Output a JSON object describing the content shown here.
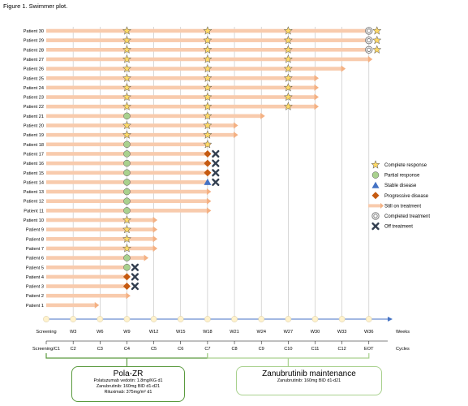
{
  "figure_title": "Figure 1. Swimmer plot.",
  "colors": {
    "bar": "#f8cbad",
    "arrow": "#f4b183",
    "axis": "#4472c4",
    "grid": "#bfbfbf",
    "cr": "#ffd966",
    "pr": "#a9d18e",
    "sd": "#4472c4",
    "pd": "#c55a11",
    "off": "#333f50",
    "completed": "#7f7f7f",
    "tick": "#fff2cc",
    "pola_border": "#5a9a3e",
    "zanu_border": "#a9d18e"
  },
  "chart_data": {
    "type": "swimmer",
    "x_axis_label": "Weeks",
    "cycles_label": "Cycles",
    "timepoints": [
      {
        "week": 0,
        "label": "Screening",
        "cycle": "Screening/C1"
      },
      {
        "week": 3,
        "label": "W3",
        "cycle": "C2"
      },
      {
        "week": 6,
        "label": "W6",
        "cycle": "C3"
      },
      {
        "week": 9,
        "label": "W9",
        "cycle": "C4"
      },
      {
        "week": 12,
        "label": "W12",
        "cycle": "C5"
      },
      {
        "week": 15,
        "label": "W15",
        "cycle": "C6"
      },
      {
        "week": 18,
        "label": "W18",
        "cycle": "C7"
      },
      {
        "week": 21,
        "label": "W21",
        "cycle": "C8"
      },
      {
        "week": 24,
        "label": "W24",
        "cycle": "C9"
      },
      {
        "week": 27,
        "label": "W27",
        "cycle": "C10"
      },
      {
        "week": 30,
        "label": "W30",
        "cycle": "C11"
      },
      {
        "week": 33,
        "label": "W33",
        "cycle": "C12"
      },
      {
        "week": 36,
        "label": "W36",
        "cycle": "EOT"
      }
    ],
    "legend": [
      {
        "key": "cr",
        "label": "Complete response"
      },
      {
        "key": "pr",
        "label": "Partial response"
      },
      {
        "key": "sd",
        "label": "Stable disease"
      },
      {
        "key": "pd",
        "label": "Progressive disease"
      },
      {
        "key": "arrow",
        "label": "Still on treatment"
      },
      {
        "key": "completed",
        "label": "Completed treatment"
      },
      {
        "key": "off",
        "label": "Off treatment"
      }
    ],
    "patients": [
      {
        "label": "Patient 30",
        "end": 36,
        "arrow": false,
        "markers": [
          {
            "w": 9,
            "t": "cr"
          },
          {
            "w": 18,
            "t": "cr"
          },
          {
            "w": 27,
            "t": "cr"
          },
          {
            "w": 36,
            "t": "completed"
          },
          {
            "w": 36.9,
            "t": "cr"
          }
        ]
      },
      {
        "label": "Patient 29",
        "end": 36,
        "arrow": false,
        "markers": [
          {
            "w": 9,
            "t": "cr"
          },
          {
            "w": 18,
            "t": "cr"
          },
          {
            "w": 27,
            "t": "cr"
          },
          {
            "w": 36,
            "t": "completed"
          },
          {
            "w": 36.9,
            "t": "cr"
          }
        ]
      },
      {
        "label": "Patient 28",
        "end": 36,
        "arrow": false,
        "markers": [
          {
            "w": 9,
            "t": "cr"
          },
          {
            "w": 18,
            "t": "cr"
          },
          {
            "w": 27,
            "t": "cr"
          },
          {
            "w": 36,
            "t": "completed"
          },
          {
            "w": 36.9,
            "t": "cr"
          }
        ]
      },
      {
        "label": "Patient 27",
        "end": 36,
        "arrow": true,
        "markers": [
          {
            "w": 9,
            "t": "cr"
          },
          {
            "w": 18,
            "t": "cr"
          },
          {
            "w": 27,
            "t": "cr"
          }
        ]
      },
      {
        "label": "Patient 26",
        "end": 33,
        "arrow": true,
        "markers": [
          {
            "w": 9,
            "t": "cr"
          },
          {
            "w": 18,
            "t": "cr"
          },
          {
            "w": 27,
            "t": "cr"
          }
        ]
      },
      {
        "label": "Patient 25",
        "end": 30,
        "arrow": true,
        "markers": [
          {
            "w": 9,
            "t": "cr"
          },
          {
            "w": 18,
            "t": "cr"
          },
          {
            "w": 27,
            "t": "cr"
          }
        ]
      },
      {
        "label": "Patient 24",
        "end": 30,
        "arrow": true,
        "markers": [
          {
            "w": 9,
            "t": "cr"
          },
          {
            "w": 18,
            "t": "cr"
          },
          {
            "w": 27,
            "t": "cr"
          }
        ]
      },
      {
        "label": "Patient 23",
        "end": 30,
        "arrow": true,
        "markers": [
          {
            "w": 9,
            "t": "cr"
          },
          {
            "w": 18,
            "t": "cr"
          },
          {
            "w": 27,
            "t": "cr"
          }
        ]
      },
      {
        "label": "Patient 22",
        "end": 30,
        "arrow": true,
        "markers": [
          {
            "w": 9,
            "t": "cr"
          },
          {
            "w": 18,
            "t": "cr"
          },
          {
            "w": 27,
            "t": "cr"
          }
        ]
      },
      {
        "label": "Patient 21",
        "end": 24,
        "arrow": true,
        "markers": [
          {
            "w": 9,
            "t": "pr"
          },
          {
            "w": 18,
            "t": "cr"
          }
        ]
      },
      {
        "label": "Patient 20",
        "end": 21,
        "arrow": true,
        "markers": [
          {
            "w": 9,
            "t": "cr"
          },
          {
            "w": 18,
            "t": "cr"
          }
        ]
      },
      {
        "label": "Patient 19",
        "end": 21,
        "arrow": true,
        "markers": [
          {
            "w": 9,
            "t": "cr"
          },
          {
            "w": 18,
            "t": "cr"
          }
        ]
      },
      {
        "label": "Patient 18",
        "end": 18,
        "arrow": true,
        "markers": [
          {
            "w": 9,
            "t": "pr"
          },
          {
            "w": 18,
            "t": "cr"
          }
        ]
      },
      {
        "label": "Patient 17",
        "end": 18,
        "arrow": false,
        "markers": [
          {
            "w": 9,
            "t": "pr"
          },
          {
            "w": 18,
            "t": "pd"
          },
          {
            "w": 18.9,
            "t": "off"
          }
        ]
      },
      {
        "label": "Patient 16",
        "end": 18,
        "arrow": false,
        "markers": [
          {
            "w": 9,
            "t": "pr"
          },
          {
            "w": 18,
            "t": "pd"
          },
          {
            "w": 18.9,
            "t": "off"
          }
        ]
      },
      {
        "label": "Patient 15",
        "end": 18,
        "arrow": false,
        "markers": [
          {
            "w": 9,
            "t": "pr"
          },
          {
            "w": 18,
            "t": "pd"
          },
          {
            "w": 18.9,
            "t": "off"
          }
        ]
      },
      {
        "label": "Patient 14",
        "end": 18,
        "arrow": false,
        "markers": [
          {
            "w": 9,
            "t": "pr"
          },
          {
            "w": 18,
            "t": "sd"
          },
          {
            "w": 18.9,
            "t": "off"
          }
        ]
      },
      {
        "label": "Patient 13",
        "end": 18,
        "arrow": true,
        "markers": [
          {
            "w": 9,
            "t": "pr"
          }
        ]
      },
      {
        "label": "Patient 12",
        "end": 18,
        "arrow": true,
        "markers": [
          {
            "w": 9,
            "t": "pr"
          }
        ]
      },
      {
        "label": "Patient 11",
        "end": 18,
        "arrow": true,
        "markers": [
          {
            "w": 9,
            "t": "pr"
          }
        ]
      },
      {
        "label": "Patient 10",
        "end": 12,
        "arrow": true,
        "markers": [
          {
            "w": 9,
            "t": "cr"
          }
        ]
      },
      {
        "label": "Patient 9",
        "end": 12,
        "arrow": true,
        "markers": [
          {
            "w": 9,
            "t": "cr"
          }
        ]
      },
      {
        "label": "Patient 8",
        "end": 12,
        "arrow": true,
        "markers": [
          {
            "w": 9,
            "t": "cr"
          }
        ]
      },
      {
        "label": "Patient 7",
        "end": 12,
        "arrow": true,
        "markers": [
          {
            "w": 9,
            "t": "cr"
          }
        ]
      },
      {
        "label": "Patient 6",
        "end": 11,
        "arrow": true,
        "markers": [
          {
            "w": 9,
            "t": "pr"
          }
        ]
      },
      {
        "label": "Patient 5",
        "end": 9,
        "arrow": false,
        "markers": [
          {
            "w": 9,
            "t": "pr"
          },
          {
            "w": 9.9,
            "t": "off"
          }
        ]
      },
      {
        "label": "Patient 4",
        "end": 9,
        "arrow": false,
        "markers": [
          {
            "w": 9,
            "t": "pd"
          },
          {
            "w": 9.9,
            "t": "off"
          }
        ]
      },
      {
        "label": "Patient 3",
        "end": 9,
        "arrow": false,
        "markers": [
          {
            "w": 9,
            "t": "pd"
          },
          {
            "w": 9.9,
            "t": "off"
          }
        ]
      },
      {
        "label": "Patient 2",
        "end": 9,
        "arrow": true,
        "markers": []
      },
      {
        "label": "Patient 1",
        "end": 5.5,
        "arrow": true,
        "markers": []
      }
    ]
  },
  "regimens": {
    "pola": {
      "title": "Pola-ZR",
      "lines": [
        "Polatuzumab vedotin: 1.8mg/KG d1",
        "Zanubrutinib: 160mg BID d1-d21",
        "Rituximab: 375mg/m² d1"
      ]
    },
    "zanu": {
      "title": "Zanubrutinib maintenance",
      "lines": [
        "Zanubrutinib: 160mg BID d1-d21"
      ]
    }
  }
}
